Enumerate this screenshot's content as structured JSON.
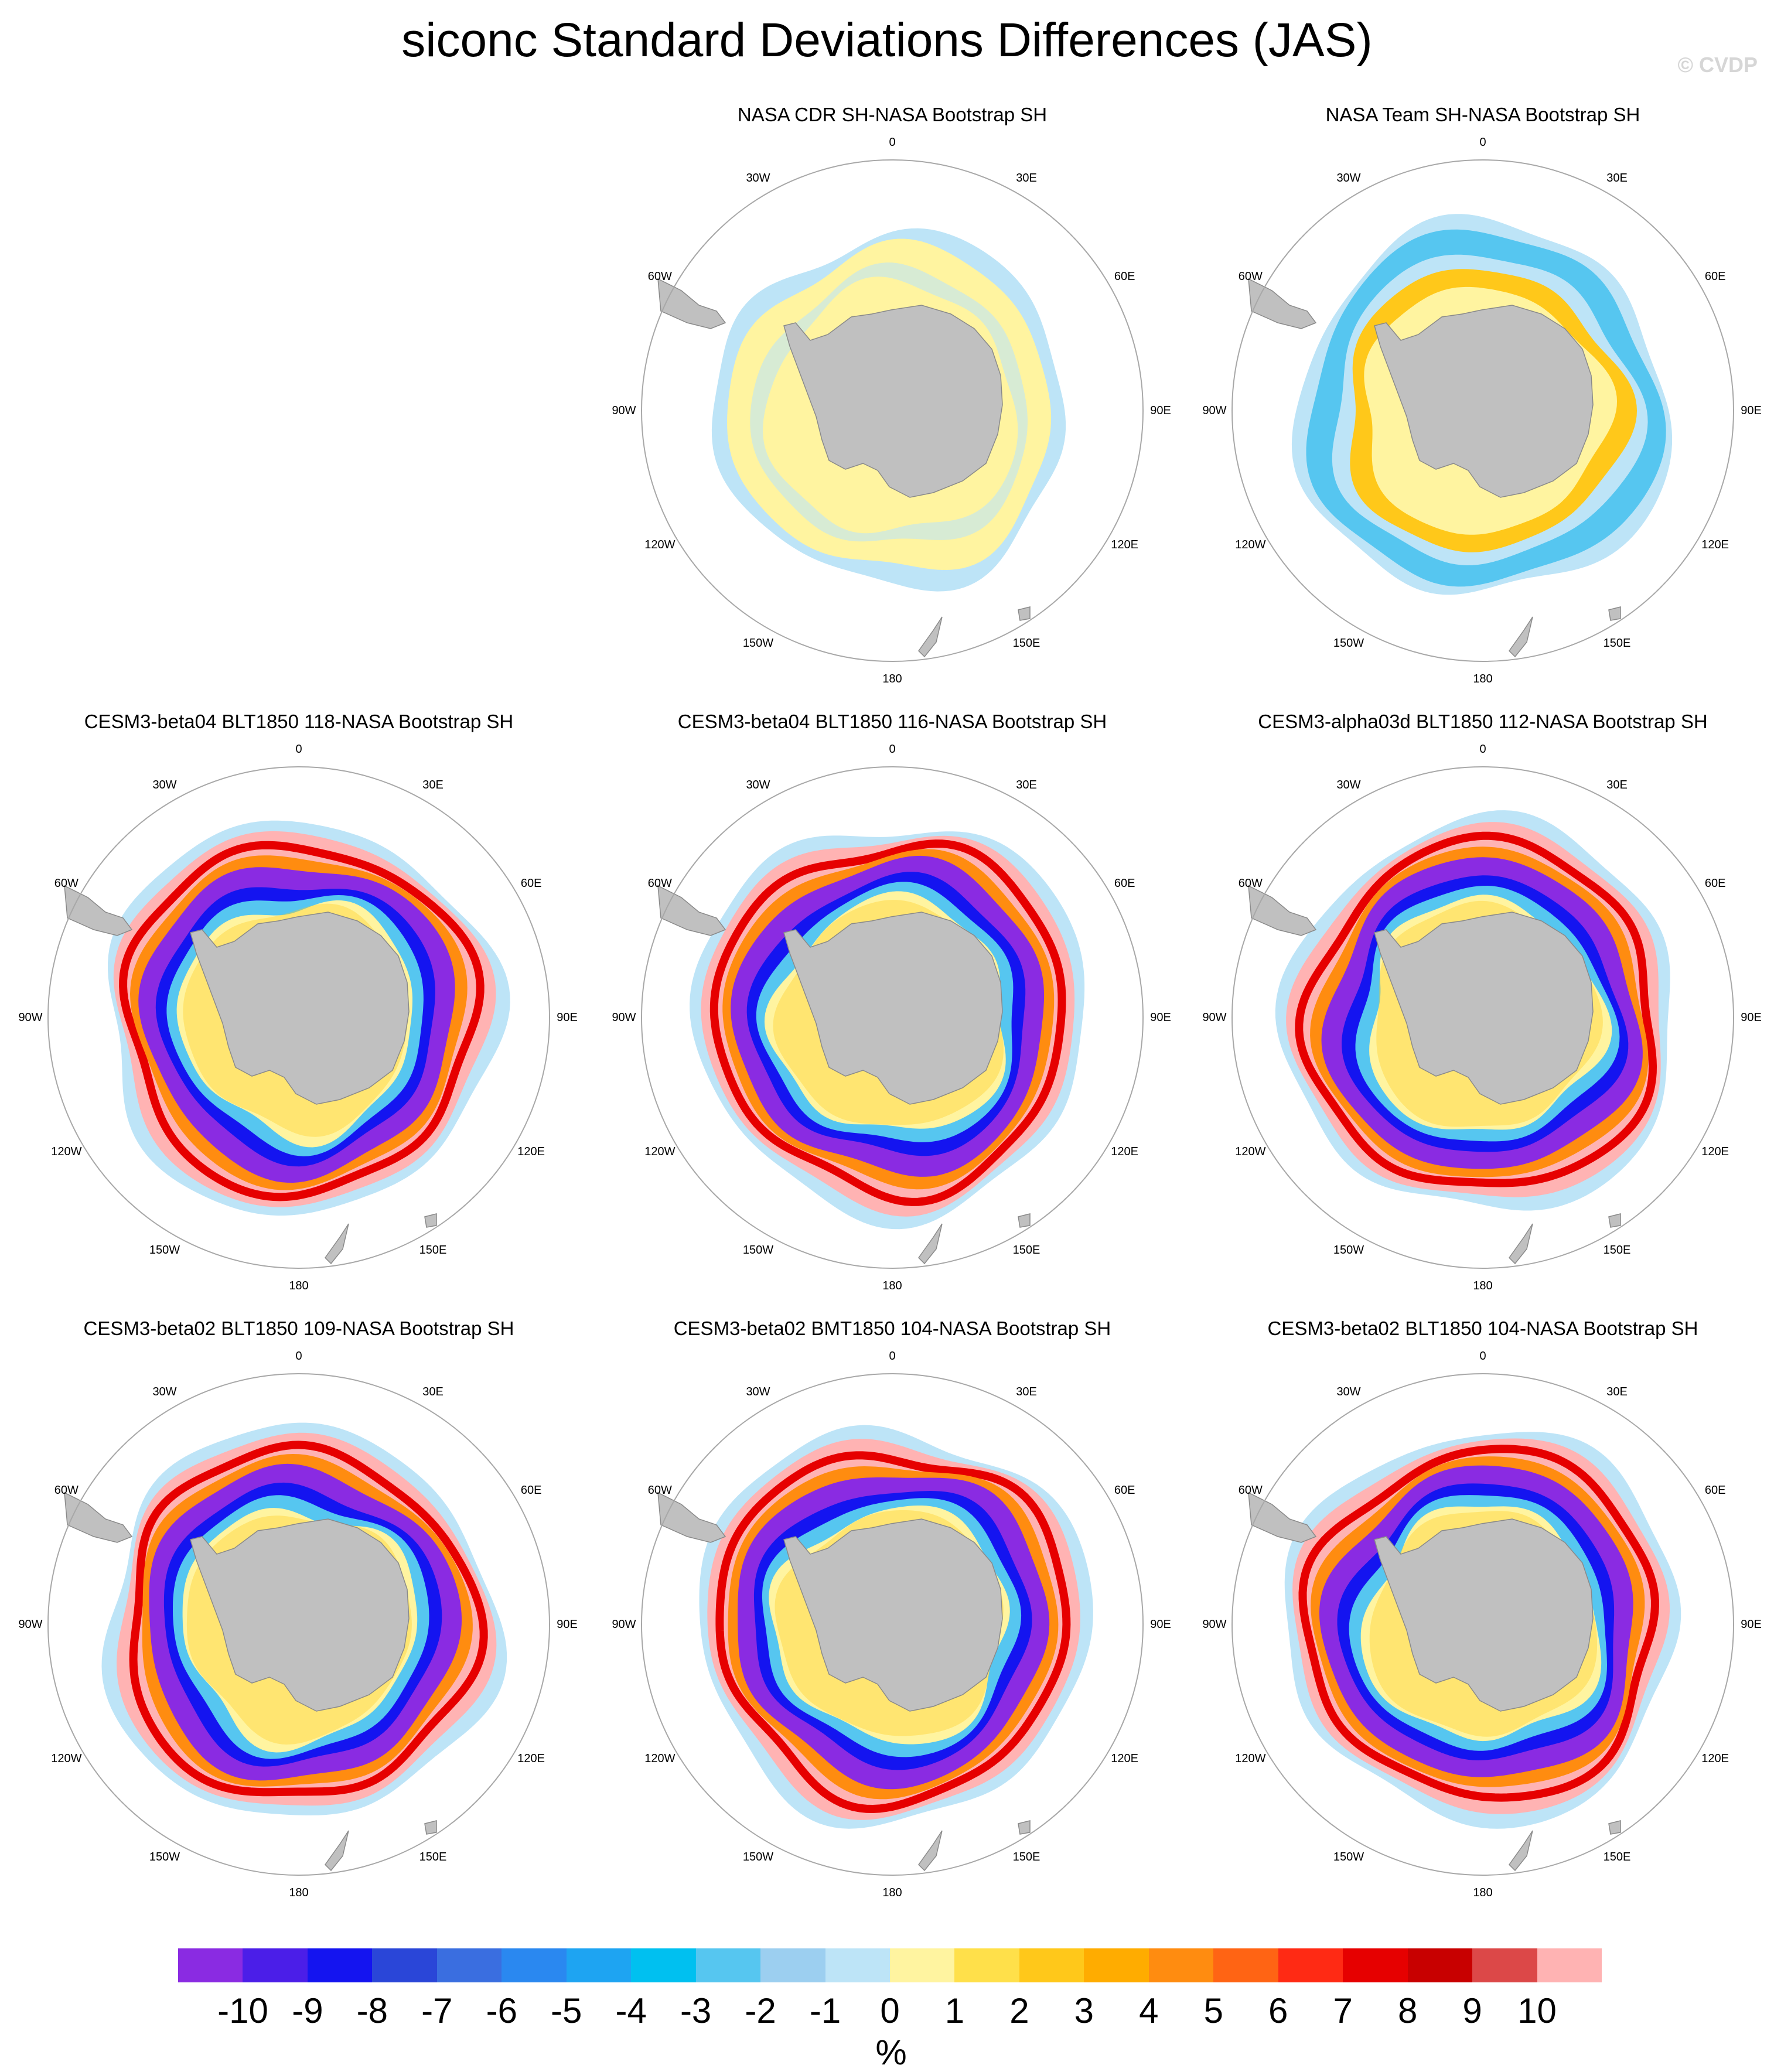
{
  "figure": {
    "title": "siconc Standard Deviations Differences (JAS)",
    "watermark": "© CVDP",
    "map_labels": {
      "0": "0",
      "30E": "30E",
      "60E": "60E",
      "90E": "90E",
      "120E": "120E",
      "150E": "150E",
      "180": "180",
      "150W": "150W",
      "120W": "120W",
      "90W": "90W",
      "60W": "60W",
      "30W": "30W"
    }
  },
  "panels": [
    {
      "title": "NASA CDR SH-NASA Bootstrap SH",
      "pattern": "obs-small"
    },
    {
      "title": "NASA Team SH-NASA Bootstrap SH",
      "pattern": "obs-team"
    },
    {
      "title": "CESM3-beta04 BLT1850 118-NASA Bootstrap SH",
      "pattern": "model"
    },
    {
      "title": "CESM3-beta04 BLT1850 116-NASA Bootstrap SH",
      "pattern": "model"
    },
    {
      "title": "CESM3-alpha03d BLT1850 112-NASA Bootstrap SH",
      "pattern": "model"
    },
    {
      "title": "CESM3-beta02 BLT1850 109-NASA Bootstrap SH",
      "pattern": "model"
    },
    {
      "title": "CESM3-beta02 BMT1850 104-NASA Bootstrap SH",
      "pattern": "model"
    },
    {
      "title": "CESM3-beta02 BLT1850 104-NASA Bootstrap SH",
      "pattern": "model"
    }
  ],
  "colorbar": {
    "labels": [
      "-10",
      "-9",
      "-8",
      "-7",
      "-6",
      "-5",
      "-4",
      "-3",
      "-2",
      "-1",
      "0",
      "1",
      "2",
      "3",
      "4",
      "5",
      "6",
      "7",
      "8",
      "9",
      "10"
    ],
    "colors": [
      "#8a2be2",
      "#4b1ee8",
      "#1414f0",
      "#2a46d8",
      "#3a6ee0",
      "#2a88f0",
      "#1ea4f2",
      "#00c0f0",
      "#56c6f0",
      "#9ccff0",
      "#bde4f7",
      "#fff4a0",
      "#ffe04a",
      "#ffc81a",
      "#ffac00",
      "#ff8c10",
      "#ff6414",
      "#ff2a14",
      "#e60000",
      "#c80000",
      "#dc4848",
      "#ffb3b3"
    ],
    "unit": "%"
  },
  "colors": {
    "land": "#c0c0c0",
    "land_edge": "#8a8a8a",
    "circle": "#a8a8a8",
    "pink": "#ffb3b3",
    "red": "#e60000",
    "orange": "#ff8c10",
    "purple": "#8a2be2",
    "blue": "#1414f0",
    "ltblue": "#bde4f7",
    "midblue": "#56c6f0",
    "yellow": "#fff4a0",
    "gold": "#ffc81a"
  }
}
